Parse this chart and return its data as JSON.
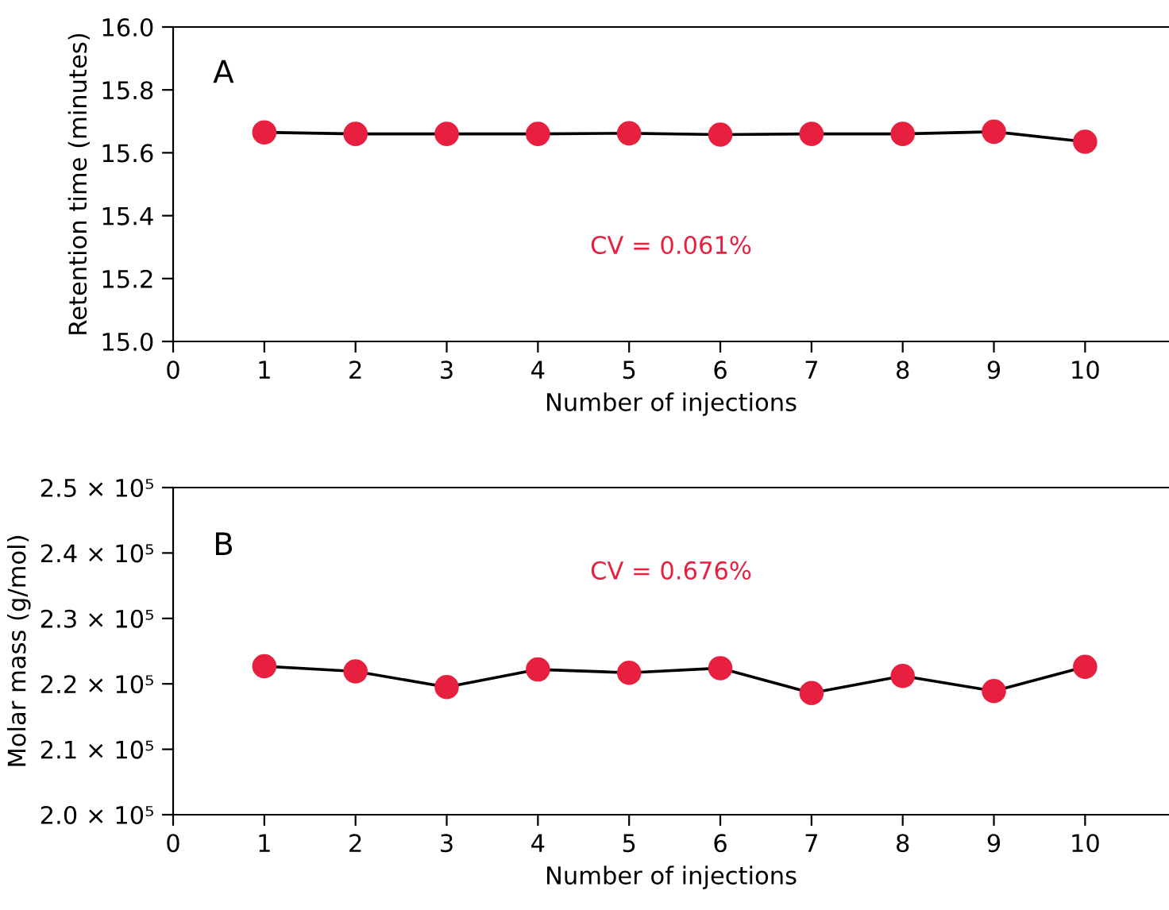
{
  "chart_data": [
    {
      "type": "line",
      "xlabel": "Number of injections",
      "ylabel": "Retention time (minutes)",
      "annotations": [
        "A",
        "CV = 0.061%"
      ],
      "x": [
        1,
        2,
        3,
        4,
        5,
        6,
        7,
        8,
        9,
        10
      ],
      "series": [
        {
          "color": "#e8203f",
          "values": [
            15.665,
            15.66,
            15.66,
            15.66,
            15.662,
            15.658,
            15.66,
            15.66,
            15.667,
            15.635
          ]
        }
      ],
      "marker": "circle",
      "line_style": "solid",
      "grid": false,
      "legend": false,
      "xlim": [
        0,
        10.92
      ],
      "xticks": [
        0,
        1,
        2,
        3,
        4,
        5,
        6,
        7,
        8,
        9,
        10
      ],
      "ylim": [
        15.0,
        16.0
      ],
      "yticks": [
        {
          "value": 15.0,
          "label": "15.0"
        },
        15.2,
        15.4,
        15.6,
        15.8,
        {
          "value": 16.0,
          "label": "16.0"
        }
      ]
    },
    {
      "type": "line",
      "xlabel": "Number of injections",
      "ylabel": "Molar mass (g/mol)",
      "annotations": [
        "B",
        "CV = 0.676%"
      ],
      "x": [
        1,
        2,
        3,
        4,
        5,
        6,
        7,
        8,
        9,
        10
      ],
      "series": [
        {
          "color": "#e8203f",
          "values": [
            222700,
            221900,
            219500,
            222200,
            221700,
            222400,
            218600,
            221200,
            218900,
            222600
          ]
        }
      ],
      "marker": "circle",
      "line_style": "solid",
      "grid": false,
      "legend": false,
      "xlim": [
        0,
        10.92
      ],
      "xticks": [
        0,
        1,
        2,
        3,
        4,
        5,
        6,
        7,
        8,
        9,
        10
      ],
      "ylim": [
        200000,
        250000
      ],
      "yticks": [
        {
          "value": 200000,
          "label": "2.0 × 10⁵"
        },
        {
          "value": 210000,
          "label": "2.1 × 10⁵"
        },
        {
          "value": 220000,
          "label": "2.2 × 10⁵"
        },
        {
          "value": 230000,
          "label": "2.3 × 10⁵"
        },
        {
          "value": 240000,
          "label": "2.4 × 10⁵"
        },
        {
          "value": 250000,
          "label": "2.5 × 10⁵"
        }
      ]
    }
  ]
}
